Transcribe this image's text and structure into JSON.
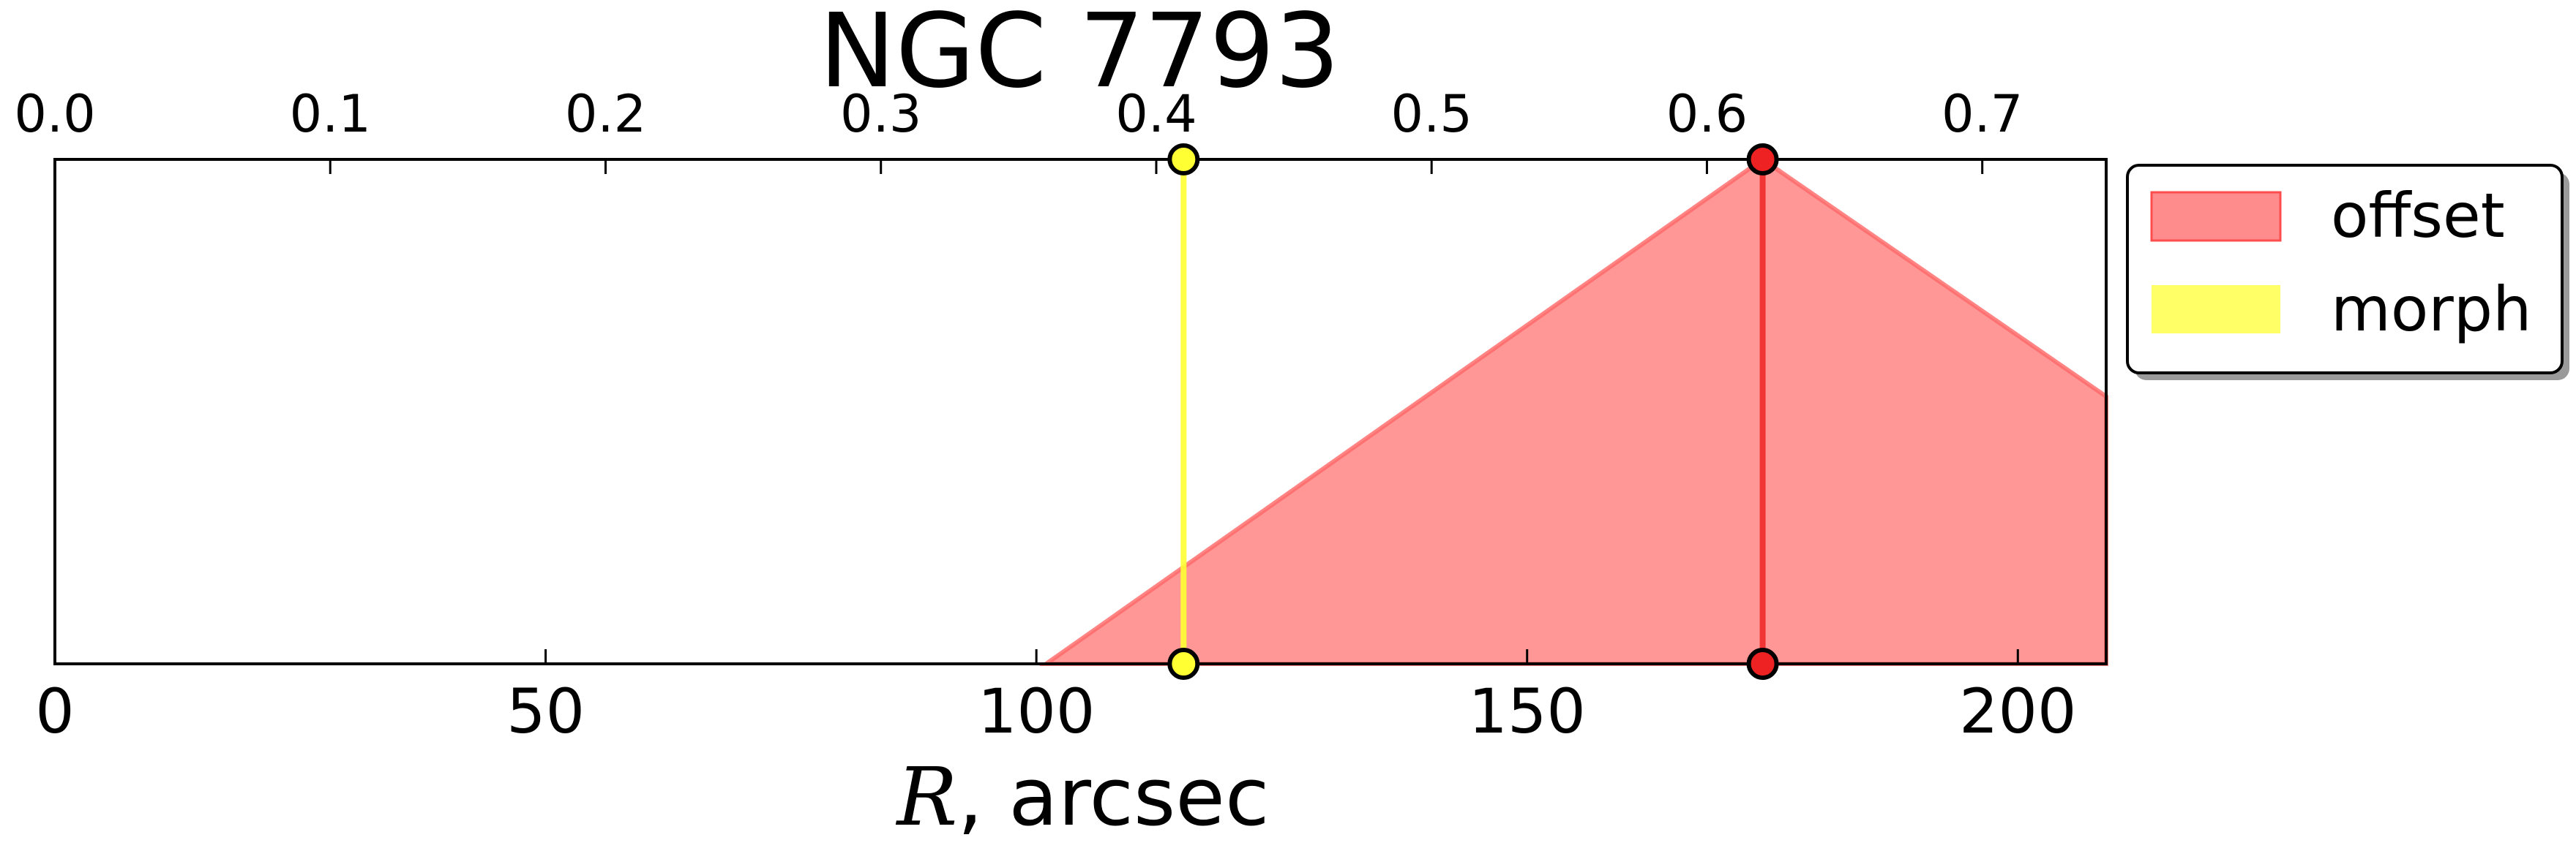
{
  "chart_data": {
    "type": "area",
    "title": "NGC 7793",
    "xlabel_var": "R",
    "xlabel_rest": ", arcsec",
    "xlim": [
      0,
      209
    ],
    "x_ticks": [
      "0",
      "50",
      "100",
      "150",
      "200"
    ],
    "top_ticks": [
      "0.0",
      "0.1",
      "0.2",
      "0.3",
      "0.4",
      "0.5",
      "0.6",
      "0.7"
    ],
    "top_lim": [
      0,
      0.745
    ],
    "ylim": [
      0,
      1
    ],
    "grid": false,
    "legend_position": "outside-right",
    "series": [
      {
        "name": "offset",
        "color": "#ff6666",
        "x": [
          101,
          174,
          209
        ],
        "y": [
          0,
          1,
          0.53
        ],
        "marker_x": 174
      },
      {
        "name": "morph",
        "color": "#ffff33",
        "marker_x": 115
      }
    ]
  }
}
